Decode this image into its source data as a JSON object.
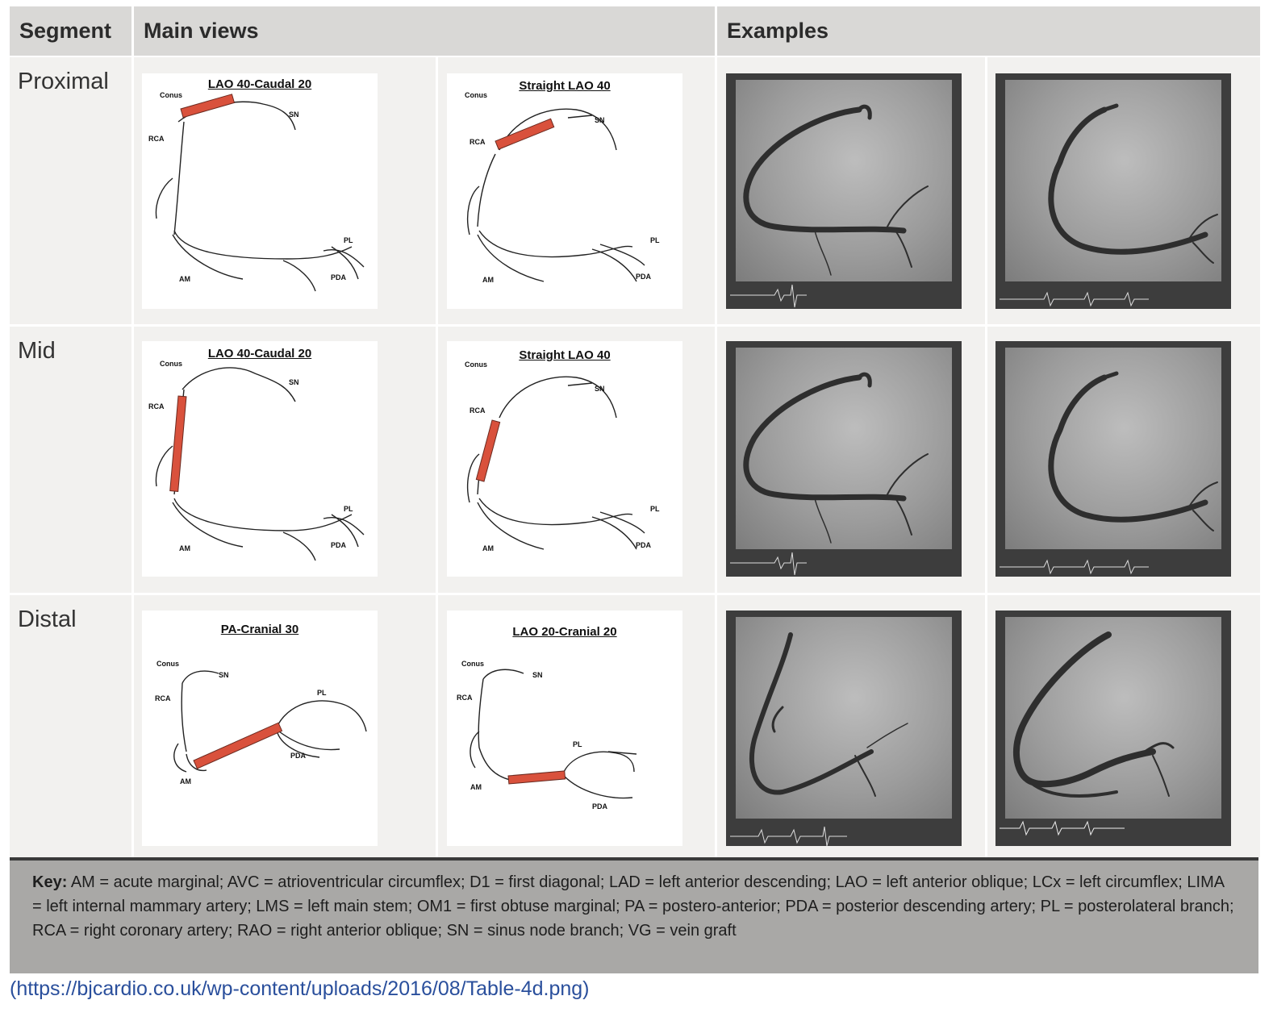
{
  "header": {
    "segment": "Segment",
    "main_views": "Main views",
    "examples": "Examples"
  },
  "rows": [
    {
      "segment": "Proximal",
      "views": [
        {
          "title": "LAO 40-Caudal 20",
          "labels": [
            "Conus",
            "SN",
            "RCA",
            "PL",
            "AM",
            "PDA"
          ]
        },
        {
          "title": "Straight LAO 40",
          "labels": [
            "Conus",
            "SN",
            "RCA",
            "PL",
            "AM",
            "PDA"
          ]
        }
      ]
    },
    {
      "segment": "Mid",
      "views": [
        {
          "title": "LAO 40-Caudal 20",
          "labels": [
            "Conus",
            "SN",
            "RCA",
            "PL",
            "AM",
            "PDA"
          ]
        },
        {
          "title": "Straight LAO 40",
          "labels": [
            "Conus",
            "SN",
            "RCA",
            "PL",
            "AM",
            "PDA"
          ]
        }
      ]
    },
    {
      "segment": "Distal",
      "views": [
        {
          "title": "PA-Cranial 30",
          "labels": [
            "Conus",
            "SN",
            "RCA",
            "PL",
            "AM",
            "PDA"
          ]
        },
        {
          "title": "LAO 20-Cranial 20",
          "labels": [
            "Conus",
            "SN",
            "RCA",
            "PL",
            "AM",
            "PDA"
          ]
        }
      ]
    }
  ],
  "key": {
    "label": "Key:",
    "text": "AM = acute marginal; AVC = atrioventricular circumflex; D1 = first diagonal; LAD = left anterior descending; LAO = left anterior oblique; LCx = left circumflex; LIMA = left internal mammary artery; LMS = left main stem; OM1 = first obtuse marginal; PA = postero-anterior; PDA = posterior descending artery; PL = posterolateral branch; RCA = right coronary artery; RAO = right anterior oblique; SN = sinus node branch; VG = vein graft"
  },
  "source": "(https://bjcardio.co.uk/wp-content/uploads/2016/08/Table-4d.png)",
  "colors": {
    "highlight": "#d9513c",
    "header_bg": "#d9d8d6",
    "cell_bg": "#f2f1ef",
    "key_bg": "#a9a8a6"
  }
}
